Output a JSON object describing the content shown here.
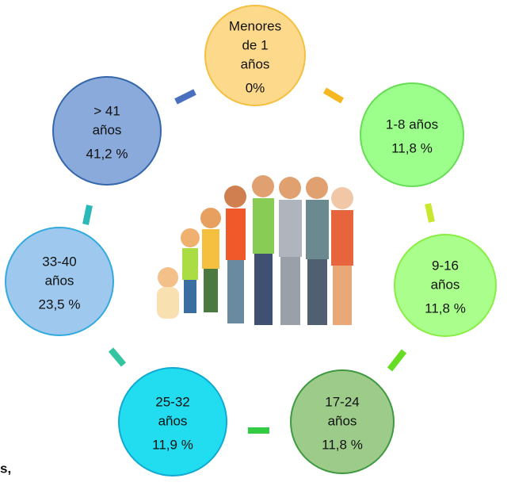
{
  "nodes": [
    {
      "lines": [
        "Menores",
        "de 1",
        "años"
      ],
      "value": "0%"
    },
    {
      "lines": [
        "1-8 años"
      ],
      "value": "11,8 %"
    },
    {
      "lines": [
        "9-16",
        "años"
      ],
      "value": "11,8 %"
    },
    {
      "lines": [
        "17-24",
        "años"
      ],
      "value": "11,8 %"
    },
    {
      "lines": [
        "25-32",
        "años"
      ],
      "value": "11,9 %"
    },
    {
      "lines": [
        "33-40",
        "años"
      ],
      "value": "23,5 %"
    },
    {
      "lines": [
        "> 41",
        "años"
      ],
      "value": "41,2 %"
    }
  ],
  "fragment": "s,"
}
